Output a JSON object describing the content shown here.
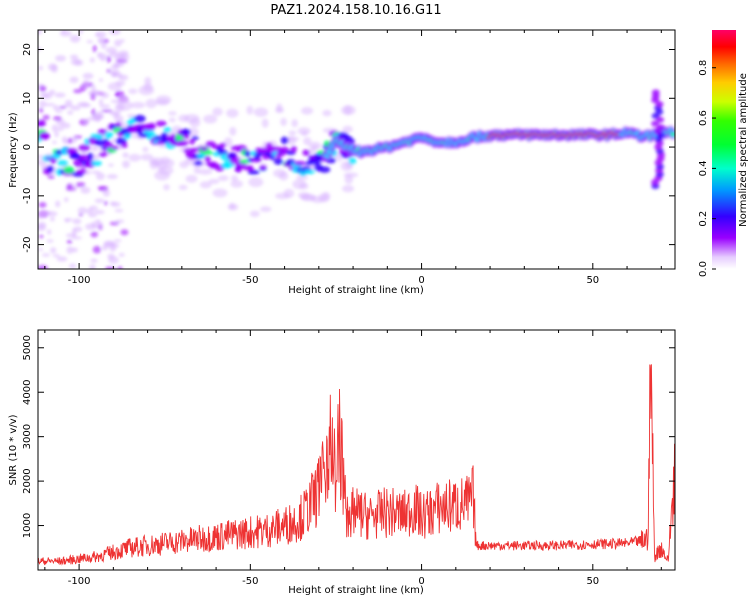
{
  "title": "PAZ1.2024.158.10.16.G11",
  "colors": {
    "snr_line": "#ee3333",
    "axes": "#000000"
  },
  "chart_data": [
    {
      "type": "heatmap",
      "xlabel": "Height of straight line (km)",
      "ylabel": "Frequency (Hz)",
      "xlim": [
        -112,
        74
      ],
      "ylim": [
        -25,
        24
      ],
      "xticks": [
        -100,
        -50,
        0,
        50
      ],
      "yticks": [
        -20,
        -10,
        0,
        10,
        20
      ],
      "colorbar": {
        "label": "Normalized spectral amplitude",
        "range": [
          0,
          0.95
        ],
        "ticks": [
          0.0,
          0.2,
          0.4,
          0.6,
          0.8
        ],
        "colormap": "gist_ncar_like"
      },
      "ridge": [
        {
          "x": -110,
          "y": -3
        },
        {
          "x": -100,
          "y": -3
        },
        {
          "x": -90,
          "y": 2
        },
        {
          "x": -85,
          "y": 4
        },
        {
          "x": -78,
          "y": 3
        },
        {
          "x": -72,
          "y": 2
        },
        {
          "x": -65,
          "y": -1
        },
        {
          "x": -58,
          "y": -2
        },
        {
          "x": -50,
          "y": -3
        },
        {
          "x": -45,
          "y": -2
        },
        {
          "x": -40,
          "y": -1
        },
        {
          "x": -35,
          "y": -3
        },
        {
          "x": -30,
          "y": -4
        },
        {
          "x": -25,
          "y": 1
        },
        {
          "x": -18,
          "y": -1
        },
        {
          "x": -10,
          "y": 0
        },
        {
          "x": -5,
          "y": 1
        },
        {
          "x": 0,
          "y": 2
        },
        {
          "x": 5,
          "y": 1
        },
        {
          "x": 10,
          "y": 1
        },
        {
          "x": 15,
          "y": 2
        },
        {
          "x": 22,
          "y": 2.5
        },
        {
          "x": 40,
          "y": 2.5
        },
        {
          "x": 55,
          "y": 2.5
        },
        {
          "x": 60,
          "y": 3
        },
        {
          "x": 65,
          "y": 2
        },
        {
          "x": 70,
          "y": 3
        }
      ]
    },
    {
      "type": "line",
      "xlabel": "Height of straight line (km)",
      "ylabel": "SNR (10 * v/v)",
      "xlim": [
        -112,
        74
      ],
      "ylim": [
        0,
        5400
      ],
      "xticks": [
        -100,
        -50,
        0,
        50
      ],
      "yticks": [
        1000,
        2000,
        3000,
        4000,
        5000
      ],
      "series": [
        {
          "x": [
            -112,
            -105,
            -100,
            -95,
            -90,
            -85,
            -80,
            -75,
            -70,
            -65,
            -60,
            -55,
            -50,
            -45,
            -40,
            -37,
            -35,
            -33,
            -30,
            -28,
            -27,
            -26,
            -25,
            -24,
            -22,
            -20,
            -15,
            -10,
            -5,
            -2,
            0,
            5,
            10,
            14,
            15,
            16,
            20,
            30,
            40,
            50,
            60,
            64,
            66,
            67,
            68,
            70,
            72,
            74
          ],
          "y": [
            200,
            200,
            250,
            300,
            400,
            500,
            550,
            600,
            650,
            700,
            750,
            800,
            850,
            900,
            1000,
            1100,
            1200,
            1400,
            1800,
            2400,
            3000,
            2700,
            2000,
            3150,
            1200,
            1300,
            1200,
            1300,
            1250,
            1400,
            1200,
            1400,
            1450,
            1500,
            1700,
            550,
            550,
            550,
            550,
            580,
            600,
            650,
            700,
            4600,
            300,
            500,
            200,
            2450
          ]
        }
      ]
    }
  ]
}
